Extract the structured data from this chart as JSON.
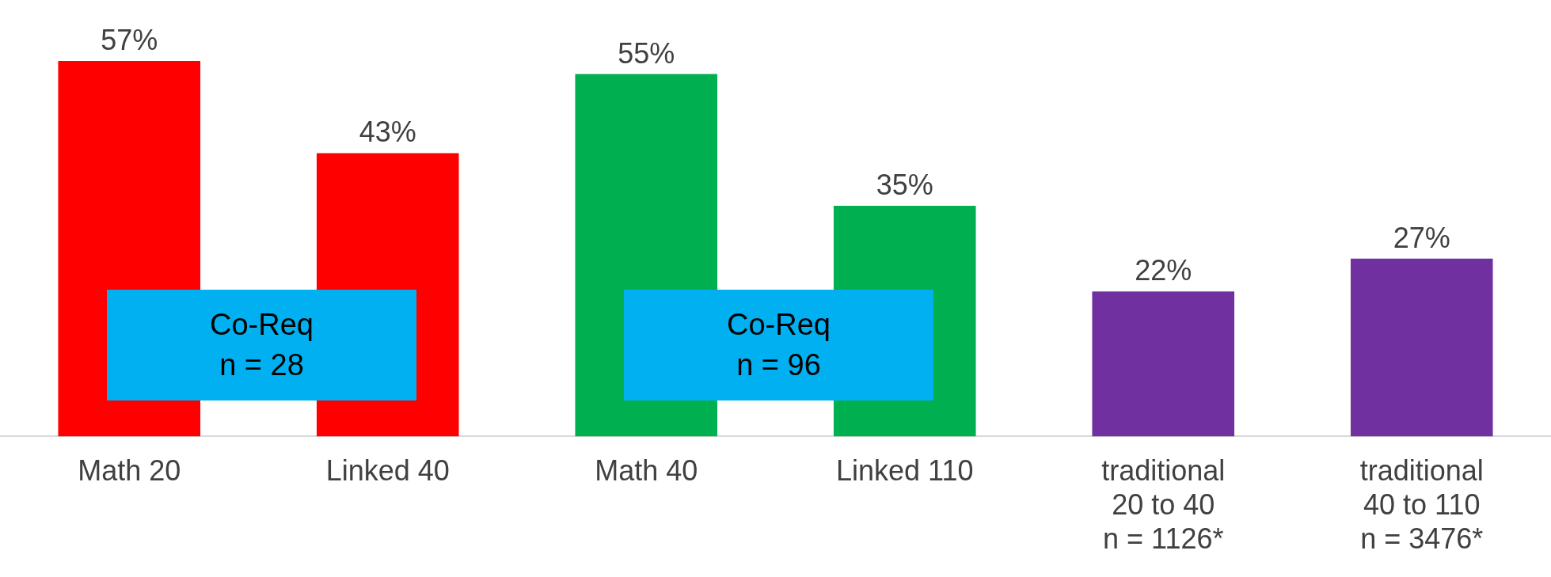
{
  "chart_data": {
    "type": "bar",
    "categories": [
      "Math 20",
      "Linked 40",
      "Math 40",
      "Linked 110",
      "traditional\n20 to 40\nn = 1126*",
      "traditional\n40 to 110\nn = 3476*"
    ],
    "values": [
      57,
      43,
      55,
      35,
      22,
      27
    ],
    "colors": [
      "#ff0000",
      "#ff0000",
      "#00b050",
      "#00b050",
      "#7030a0",
      "#7030a0"
    ],
    "value_labels": [
      "57%",
      "43%",
      "55%",
      "35%",
      "22%",
      "27%"
    ],
    "annotations": [
      "Co-Req\nn = 28",
      "Co-Req\nn = 96"
    ],
    "grid": false,
    "legend": false
  }
}
